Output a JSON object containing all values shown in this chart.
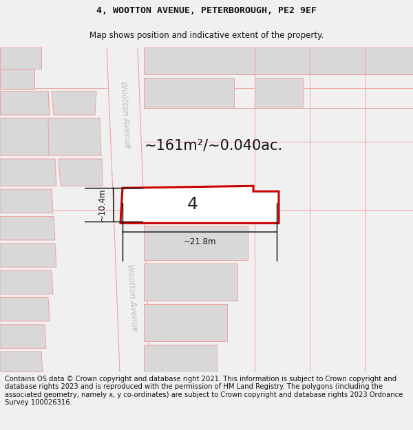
{
  "title_line1": "4, WOOTTON AVENUE, PETERBOROUGH, PE2 9EF",
  "title_line2": "Map shows position and indicative extent of the property.",
  "area_text": "~161m²/~0.040ac.",
  "property_number": "4",
  "width_label": "~21.8m",
  "height_label": "~10.4m",
  "street_name": "Wootton Avenue",
  "footer_text": "Contains OS data © Crown copyright and database right 2021. This information is subject to Crown copyright and database rights 2023 and is reproduced with the permission of HM Land Registry. The polygons (including the associated geometry, namely x, y co-ordinates) are subject to Crown copyright and database rights 2023 Ordnance Survey 100026316.",
  "bg_color": "#f0f0f0",
  "map_bg": "#ffffff",
  "footer_bg": "#ffffff",
  "property_fill": "#ffffff",
  "property_edge": "#cc0000",
  "road_color": "#f0f0f0",
  "building_color": "#d8d8d8",
  "road_line_color": "#f0a0a0",
  "title_fontsize": 9.5,
  "subtitle_fontsize": 8.5,
  "area_fontsize": 15,
  "number_fontsize": 18,
  "label_fontsize": 8.5,
  "street_fontsize": 8.5,
  "footer_fontsize": 7.2
}
